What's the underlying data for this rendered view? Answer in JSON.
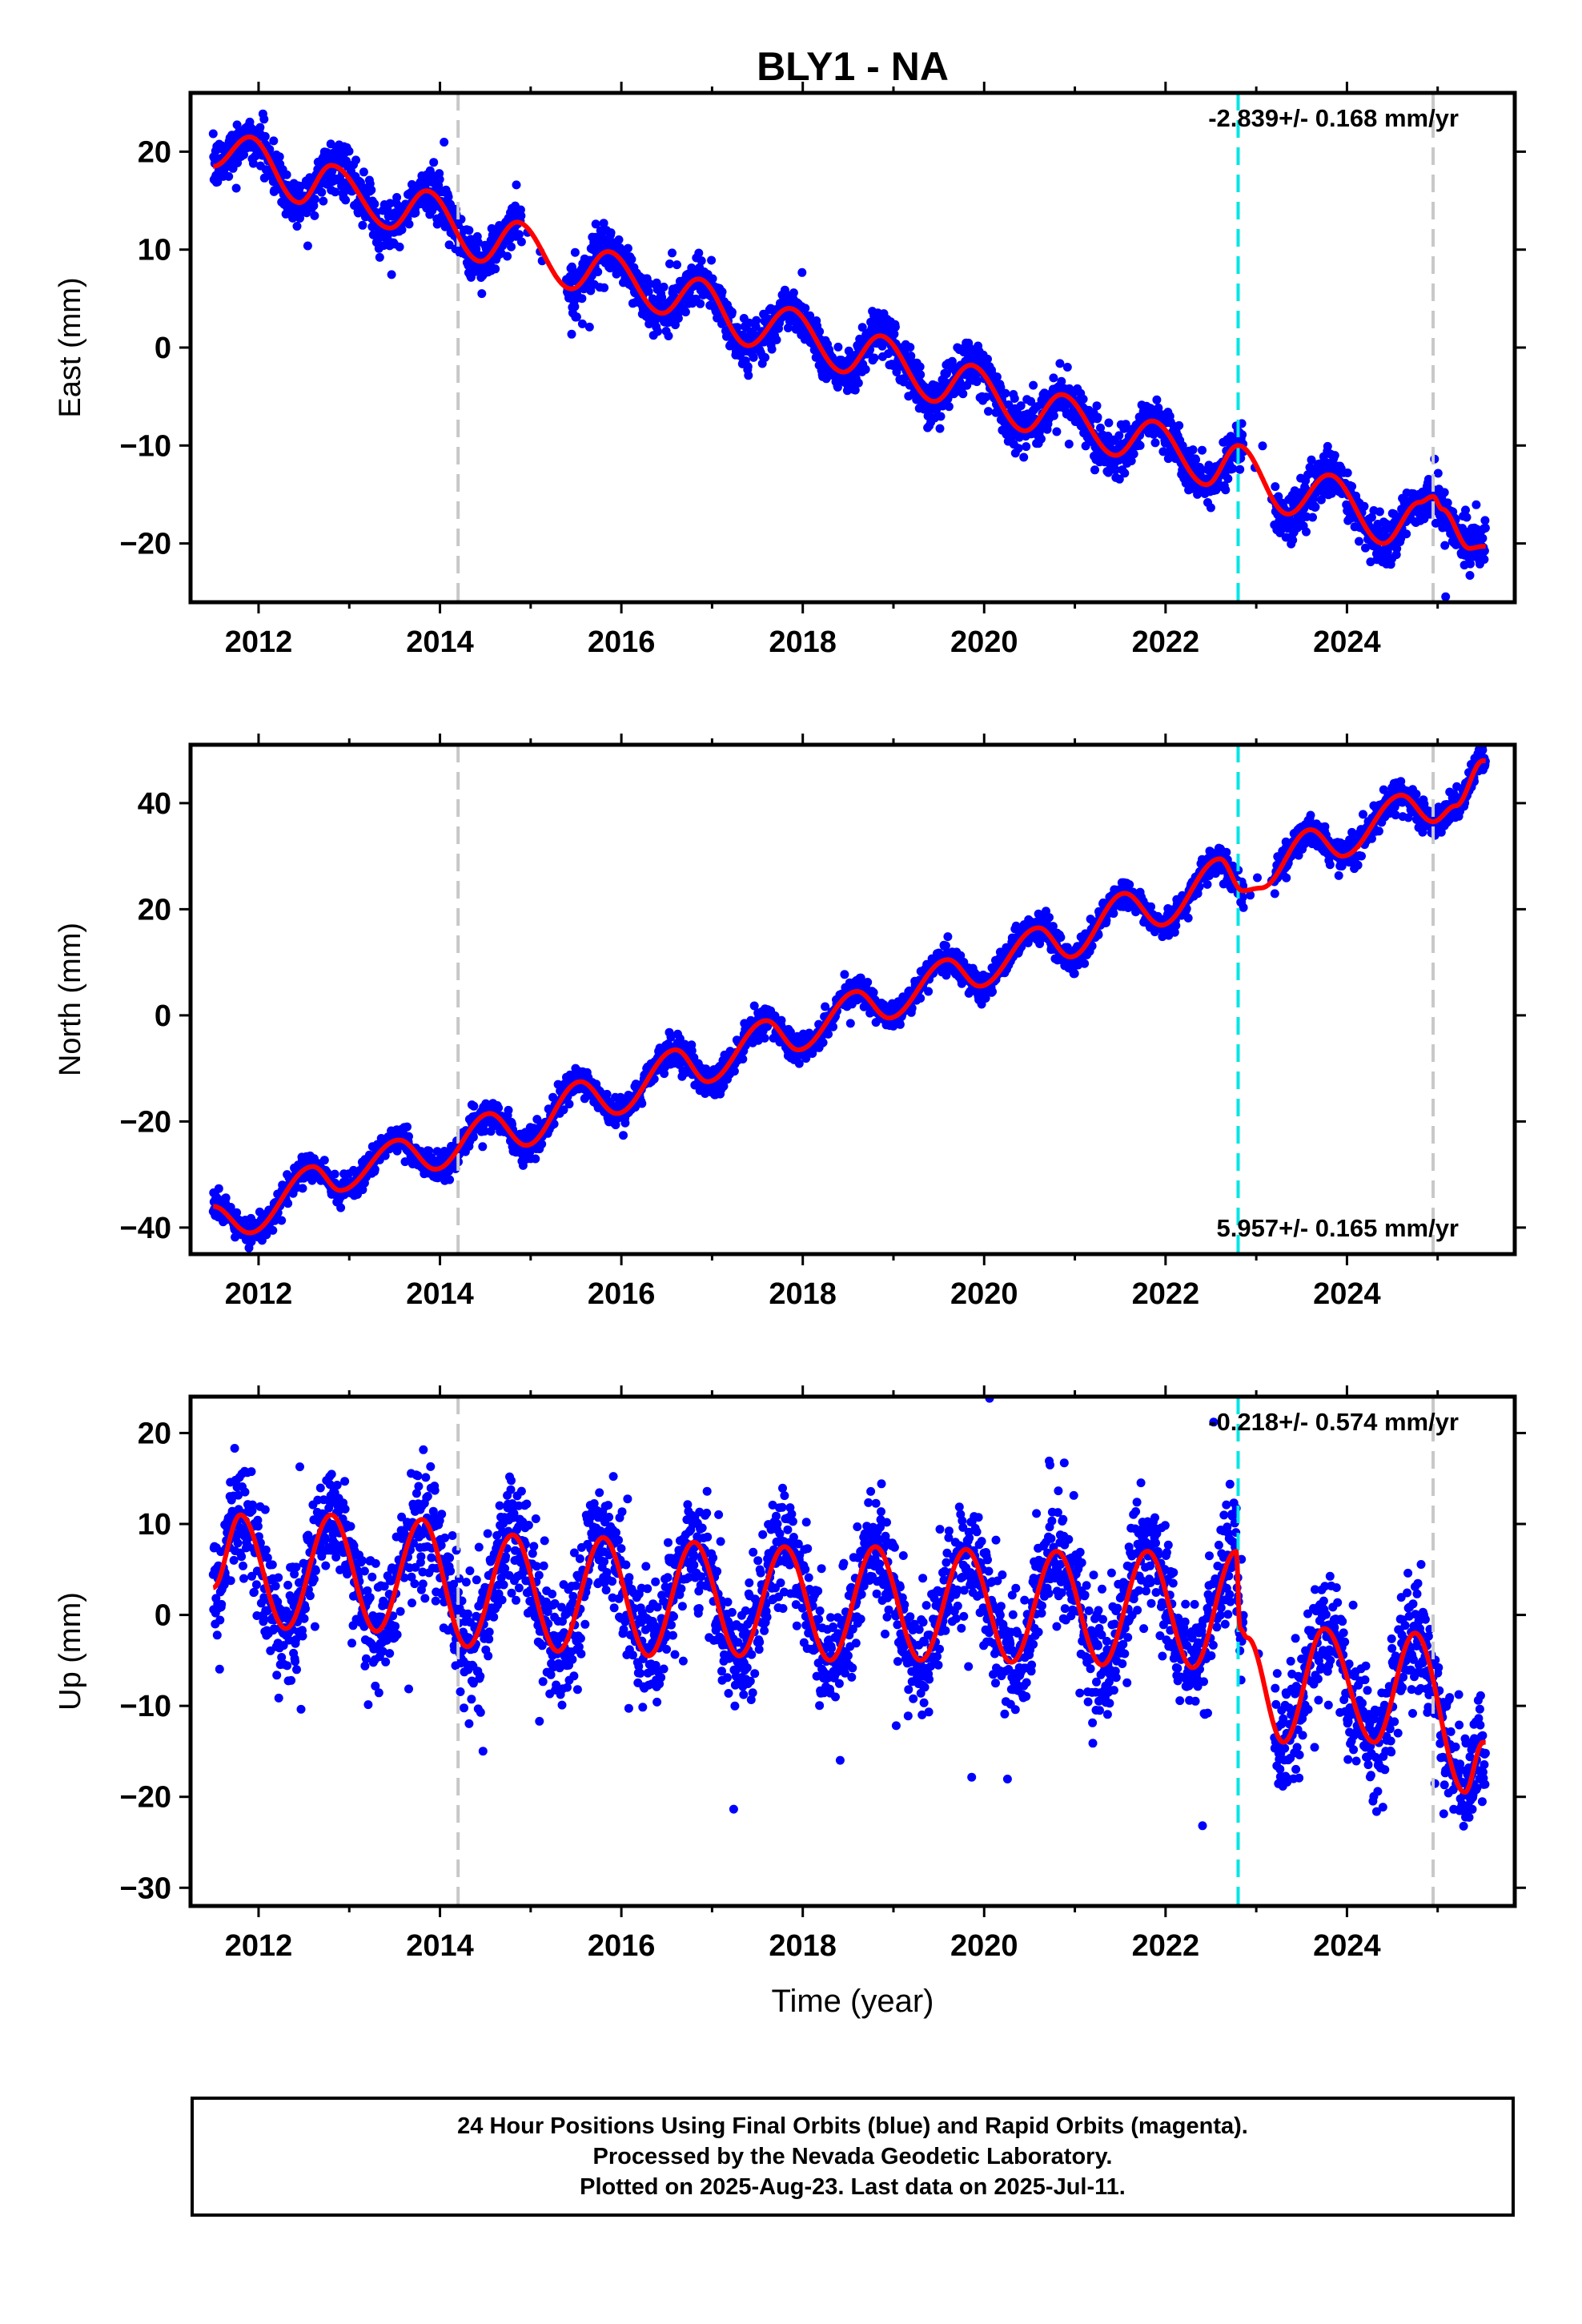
{
  "title": "BLY1 - NA",
  "footer": {
    "line1": "24 Hour Positions Using Final Orbits (blue) and Rapid Orbits (magenta).",
    "line2": "Processed by the Nevada Geodetic Laboratory.",
    "line3": "Plotted on 2025-Aug-23. Last data on 2025-Jul-11."
  },
  "colors": {
    "points": "#0000ff",
    "model": "#ff0000",
    "equipment_change": "#c8c8c8",
    "earthquake": "#00e5e5",
    "frame": "#000000"
  },
  "chart_data": [
    {
      "type": "scatter",
      "component": "East",
      "ylabel": "East (mm)",
      "xlabel": "",
      "xlim": [
        2011.25,
        2025.85
      ],
      "ylim": [
        -26,
        26
      ],
      "xticks": [
        2012,
        2014,
        2016,
        2018,
        2020,
        2022,
        2024
      ],
      "yticks": [
        -20,
        -10,
        0,
        10,
        20
      ],
      "rate_label": "-2.839+/- 0.168 mm/yr",
      "rate_position": "top-right",
      "rate": -2.839,
      "annual_amplitude": 3.2,
      "offsets": [
        {
          "year": 2022.8,
          "value": 0
        }
      ],
      "model_knots": [
        [
          2011.5,
          18.5
        ],
        [
          2011.9,
          21.5
        ],
        [
          2012.45,
          14.8
        ],
        [
          2012.8,
          18.6
        ],
        [
          2013.45,
          12.2
        ],
        [
          2013.85,
          16
        ],
        [
          2014.45,
          8.8
        ],
        [
          2014.85,
          12.8
        ],
        [
          2015.45,
          6
        ],
        [
          2015.85,
          9.8
        ],
        [
          2016.45,
          3.5
        ],
        [
          2016.85,
          7
        ],
        [
          2017.4,
          0.2
        ],
        [
          2017.85,
          4
        ],
        [
          2018.45,
          -2.5
        ],
        [
          2018.85,
          1.2
        ],
        [
          2019.45,
          -5.5
        ],
        [
          2019.85,
          -1.8
        ],
        [
          2020.45,
          -8.5
        ],
        [
          2020.85,
          -4.8
        ],
        [
          2021.45,
          -11
        ],
        [
          2021.85,
          -7.5
        ],
        [
          2022.45,
          -14
        ],
        [
          2022.8,
          -10
        ],
        [
          2023.35,
          -17
        ],
        [
          2023.8,
          -13
        ],
        [
          2024.4,
          -20
        ],
        [
          2024.8,
          -15.8
        ],
        [
          2024.95,
          -15.2
        ],
        [
          2025.05,
          -16.5
        ],
        [
          2025.35,
          -20.5
        ],
        [
          2025.5,
          -20.3
        ]
      ],
      "vlines": [
        {
          "x": 2014.2,
          "kind": "equipment_change"
        },
        {
          "x": 2022.8,
          "kind": "earthquake"
        },
        {
          "x": 2024.95,
          "kind": "equipment_change"
        }
      ],
      "data_span": [
        2011.5,
        2025.53
      ],
      "scatter_sigma": 1.2
    },
    {
      "type": "scatter",
      "component": "North",
      "ylabel": "North (mm)",
      "xlabel": "",
      "xlim": [
        2011.25,
        2025.85
      ],
      "ylim": [
        -45,
        51
      ],
      "xticks": [
        2012,
        2014,
        2016,
        2018,
        2020,
        2022,
        2024
      ],
      "yticks": [
        -40,
        -20,
        0,
        20,
        40
      ],
      "rate_label": "5.957+/- 0.165 mm/yr",
      "rate_position": "bottom-right",
      "rate": 5.957,
      "annual_amplitude": 3,
      "model_knots": [
        [
          2011.5,
          -36
        ],
        [
          2011.9,
          -41
        ],
        [
          2012.6,
          -28.5
        ],
        [
          2012.9,
          -33
        ],
        [
          2013.55,
          -23.5
        ],
        [
          2013.95,
          -29
        ],
        [
          2014.55,
          -18.5
        ],
        [
          2014.95,
          -24.5
        ],
        [
          2015.55,
          -12.5
        ],
        [
          2015.95,
          -18.5
        ],
        [
          2016.6,
          -6.5
        ],
        [
          2016.95,
          -12.5
        ],
        [
          2017.6,
          -1
        ],
        [
          2017.95,
          -6.5
        ],
        [
          2018.6,
          4.5
        ],
        [
          2018.95,
          -0.5
        ],
        [
          2019.6,
          10.5
        ],
        [
          2019.95,
          5.5
        ],
        [
          2020.6,
          16.5
        ],
        [
          2020.95,
          11
        ],
        [
          2021.55,
          23
        ],
        [
          2021.95,
          17
        ],
        [
          2022.6,
          29.5
        ],
        [
          2022.85,
          23.5
        ],
        [
          2023.05,
          24
        ],
        [
          2023.6,
          35
        ],
        [
          2023.95,
          30
        ],
        [
          2024.6,
          41.5
        ],
        [
          2024.95,
          36.5
        ],
        [
          2025.2,
          39.5
        ],
        [
          2025.5,
          48
        ]
      ],
      "vlines": [
        {
          "x": 2014.2,
          "kind": "equipment_change"
        },
        {
          "x": 2022.8,
          "kind": "earthquake"
        },
        {
          "x": 2024.95,
          "kind": "equipment_change"
        }
      ],
      "data_span": [
        2011.5,
        2025.53
      ],
      "scatter_sigma": 1.3
    },
    {
      "type": "scatter",
      "component": "Up",
      "ylabel": "Up (mm)",
      "xlabel": "Time (year)",
      "xlim": [
        2011.25,
        2025.85
      ],
      "ylim": [
        -32,
        24
      ],
      "xticks": [
        2012,
        2014,
        2016,
        2018,
        2020,
        2022,
        2024
      ],
      "yticks": [
        -30,
        -20,
        -10,
        0,
        10,
        20
      ],
      "rate_label": "-0.218+/- 0.574 mm/yr",
      "rate_position": "top-right",
      "rate": -0.218,
      "annual_amplitude": 6.5,
      "model_knots": [
        [
          2011.5,
          3
        ],
        [
          2011.8,
          11
        ],
        [
          2012.3,
          -1.5
        ],
        [
          2012.8,
          11
        ],
        [
          2013.3,
          -1.8
        ],
        [
          2013.8,
          10.5
        ],
        [
          2014.3,
          -3.5
        ],
        [
          2014.8,
          8.8
        ],
        [
          2015.3,
          -4
        ],
        [
          2015.8,
          8.5
        ],
        [
          2016.3,
          -4.5
        ],
        [
          2016.8,
          8
        ],
        [
          2017.3,
          -4.5
        ],
        [
          2017.8,
          7.5
        ],
        [
          2018.3,
          -5
        ],
        [
          2018.8,
          7.5
        ],
        [
          2019.3,
          -5
        ],
        [
          2019.8,
          7.2
        ],
        [
          2020.3,
          -5.2
        ],
        [
          2020.8,
          7
        ],
        [
          2021.3,
          -5.5
        ],
        [
          2021.8,
          7
        ],
        [
          2022.3,
          -5.8
        ],
        [
          2022.78,
          7
        ],
        [
          2022.82,
          -1.5
        ],
        [
          2022.9,
          -2.5
        ],
        [
          2023.3,
          -14
        ],
        [
          2023.75,
          -1.5
        ],
        [
          2024.3,
          -14
        ],
        [
          2024.75,
          -2
        ],
        [
          2025.3,
          -19.5
        ],
        [
          2025.5,
          -14
        ]
      ],
      "vlines": [
        {
          "x": 2014.2,
          "kind": "equipment_change"
        },
        {
          "x": 2022.8,
          "kind": "earthquake"
        },
        {
          "x": 2024.95,
          "kind": "equipment_change"
        }
      ],
      "data_span": [
        2011.5,
        2025.53
      ],
      "scatter_sigma": 3.2
    }
  ]
}
